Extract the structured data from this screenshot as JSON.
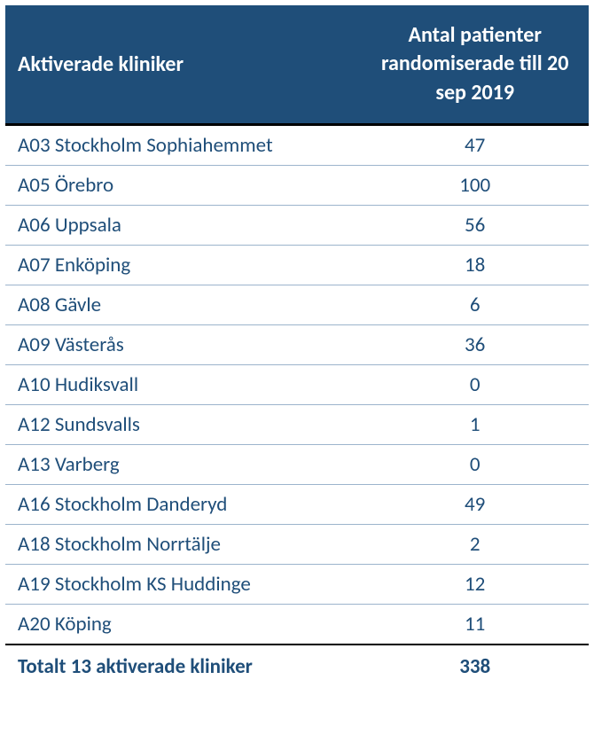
{
  "table": {
    "header": {
      "clinic_label": "Aktiverade kliniker",
      "count_label": "Antal patienter randomiserade till 20 sep 2019"
    },
    "rows": [
      {
        "clinic": "A03 Stockholm Sophiahemmet",
        "count": "47"
      },
      {
        "clinic": "A05 Örebro",
        "count": "100"
      },
      {
        "clinic": "A06 Uppsala",
        "count": "56"
      },
      {
        "clinic": "A07 Enköping",
        "count": "18"
      },
      {
        "clinic": "A08 Gävle",
        "count": "6"
      },
      {
        "clinic": "A09 Västerås",
        "count": "36"
      },
      {
        "clinic": "A10 Hudiksvall",
        "count": "0"
      },
      {
        "clinic": "A12 Sundsvalls",
        "count": "1"
      },
      {
        "clinic": "A13 Varberg",
        "count": "0"
      },
      {
        "clinic": "A16 Stockholm Danderyd",
        "count": "49"
      },
      {
        "clinic": "A18 Stockholm Norrtälje",
        "count": "2"
      },
      {
        "clinic": "A19 Stockholm KS Huddinge",
        "count": "12"
      },
      {
        "clinic": "A20 Köping",
        "count": "11"
      }
    ],
    "footer": {
      "label": "Totalt 13 aktiverade kliniker",
      "total": "338"
    },
    "style": {
      "header_bg": "#1f4e79",
      "header_text_color": "#ffffff",
      "body_text_color": "#1f4e79",
      "row_border_color": "#9cb4cc",
      "header_bottom_border": "#000000",
      "footer_top_border": "#000000",
      "font_family": "Calibri",
      "header_font_size_pt": 18,
      "body_font_size_pt": 17,
      "col_widths_pct": [
        61,
        39
      ]
    }
  }
}
